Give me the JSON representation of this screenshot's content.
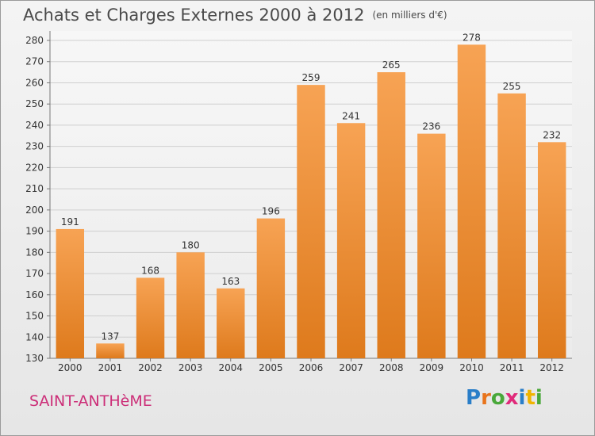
{
  "title": "Achats et Charges Externes 2000 à 2012",
  "unit": "(en milliers d'€)",
  "place": "SAINT-ANTHèME",
  "logo": {
    "text": "Proxiti",
    "letters": [
      {
        "ch": "P",
        "color": "#2a7ec8"
      },
      {
        "ch": "r",
        "color": "#e8741c"
      },
      {
        "ch": "o",
        "color": "#49a83a"
      },
      {
        "ch": "x",
        "color": "#e02a7a"
      },
      {
        "ch": "i",
        "color": "#2a7ec8"
      },
      {
        "ch": "t",
        "color": "#f0b400"
      },
      {
        "ch": "i",
        "color": "#49a83a"
      }
    ]
  },
  "colors": {
    "bar_top": "#f7a354",
    "bar_bottom": "#de7a1c",
    "grid": "#cfcfcf",
    "axis_text": "#333333"
  },
  "chart_data": {
    "type": "bar",
    "title": "Achats et Charges Externes 2000 à 2012",
    "xlabel": "",
    "ylabel": "",
    "categories": [
      "2000",
      "2001",
      "2002",
      "2003",
      "2004",
      "2005",
      "2006",
      "2007",
      "2008",
      "2009",
      "2010",
      "2011",
      "2012"
    ],
    "values": [
      191,
      137,
      168,
      180,
      163,
      196,
      259,
      241,
      265,
      236,
      278,
      255,
      232
    ],
    "ylim": [
      130,
      280
    ],
    "yticks": [
      130,
      140,
      150,
      160,
      170,
      180,
      190,
      200,
      210,
      220,
      230,
      240,
      250,
      260,
      270,
      280
    ],
    "grid": true
  }
}
